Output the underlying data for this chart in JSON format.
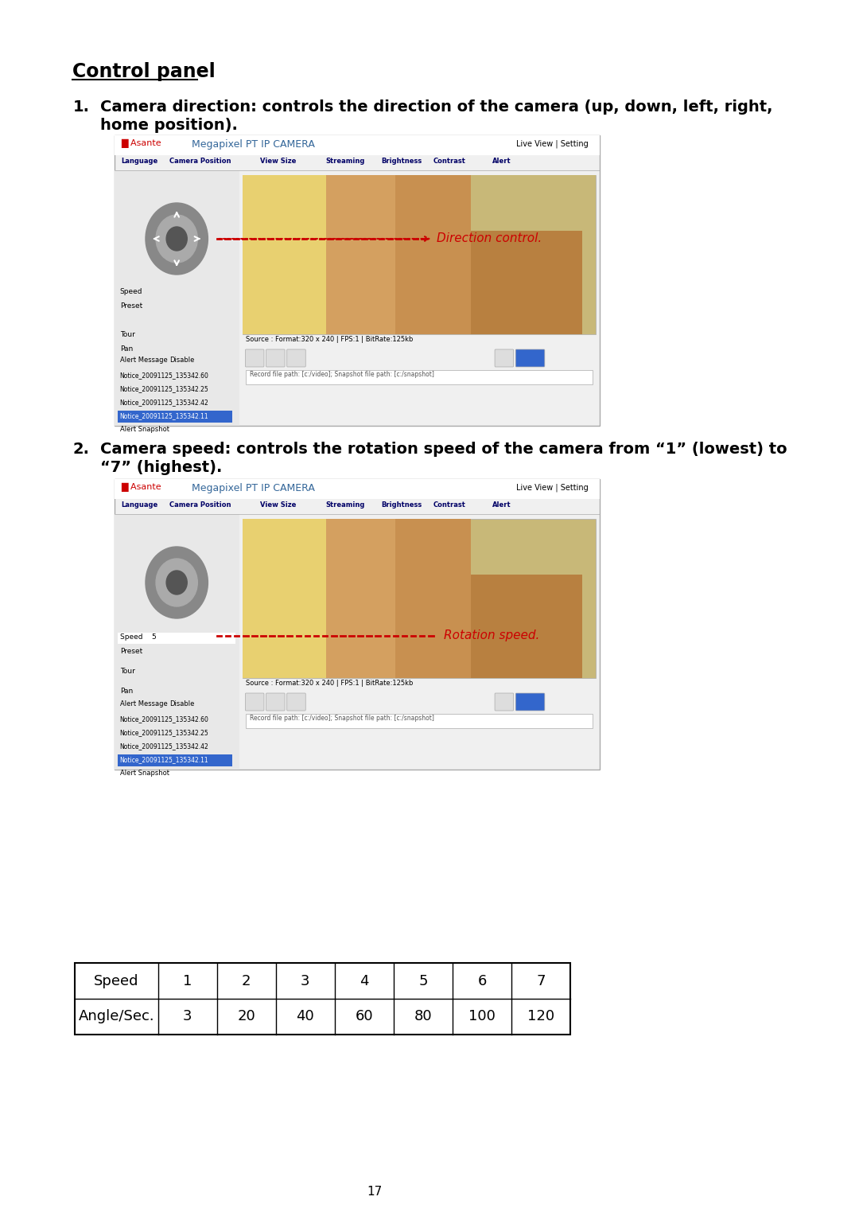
{
  "title": "Control panel",
  "section1_label": "1.",
  "section1_text": "Camera direction: controls the direction of the camera (up, down, left, right,\nhome position).",
  "section2_label": "2.",
  "section2_text": "Camera speed: controls the rotation speed of the camera from “1” (lowest) to\n“7” (highest).",
  "direction_annotation": "Direction control.",
  "rotation_annotation": "Rotation speed.",
  "table_headers": [
    "Speed",
    "1",
    "2",
    "3",
    "4",
    "5",
    "6",
    "7"
  ],
  "table_row": [
    "Angle/Sec.",
    "3",
    "20",
    "40",
    "60",
    "80",
    "100",
    "120"
  ],
  "page_number": "17",
  "bg_color": "#ffffff",
  "text_color": "#000000",
  "red_color": "#cc0000",
  "annotation_color": "#cc0000",
  "table_border_color": "#000000"
}
